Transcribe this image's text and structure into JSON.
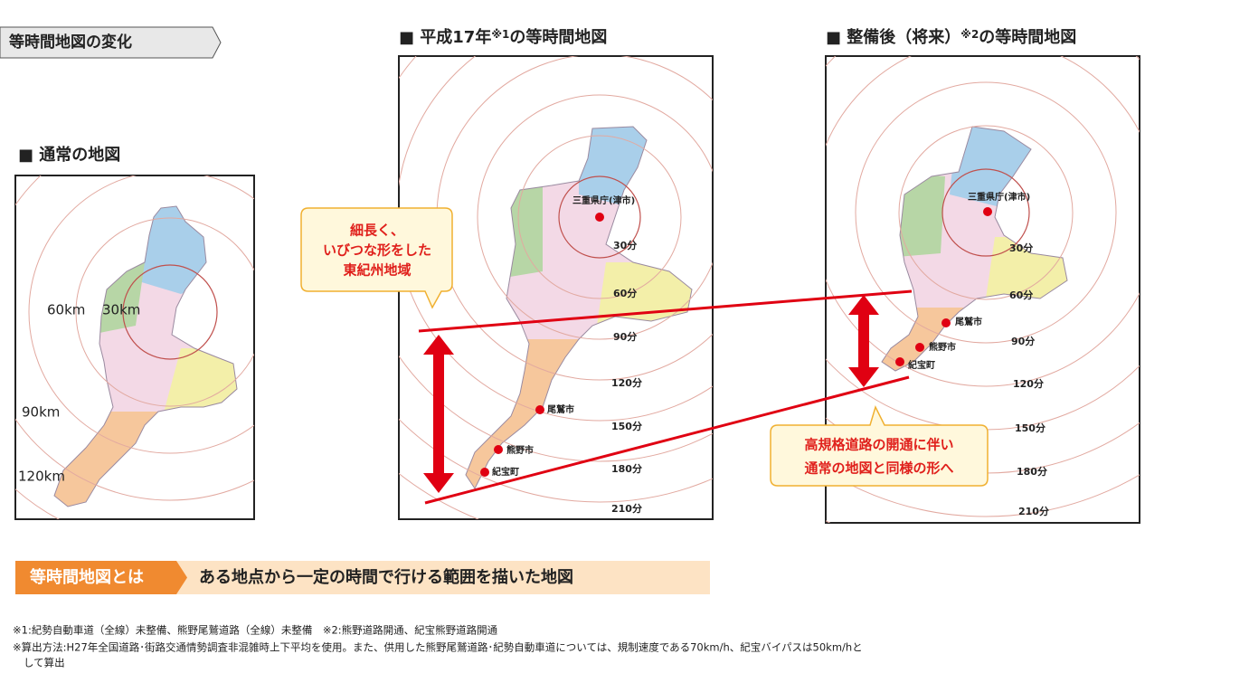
{
  "header": {
    "tab": "等時間地図の変化"
  },
  "maps": [
    {
      "title": "■ 通常の地図",
      "labels": [
        "60km",
        "30km",
        "90km",
        "120km"
      ]
    },
    {
      "title": "■ 平成17年",
      "title_note": "※1",
      "title_suffix": "の等時間地図",
      "office": "三重県庁(津市)",
      "contours": [
        "30分",
        "60分",
        "90分",
        "120分",
        "150分",
        "180分",
        "210分"
      ],
      "cities": [
        "尾鷲市",
        "熊野市",
        "紀宝町"
      ]
    },
    {
      "title": "■ 整備後（将来）",
      "title_note": "※2",
      "title_suffix": "の等時間地図",
      "office": "三重県庁(津市)",
      "contours": [
        "30分",
        "60分",
        "90分",
        "120分",
        "150分",
        "180分",
        "210分"
      ],
      "cities": [
        "尾鷲市",
        "熊野市",
        "紀宝町"
      ]
    }
  ],
  "callouts": [
    {
      "lines": [
        "細長く、",
        "いびつな形をした",
        "東紀州地域"
      ]
    },
    {
      "lines": [
        "高規格道路の開通に伴い",
        "通常の地図と同様の形へ"
      ]
    }
  ],
  "definition": {
    "term": "等時間地図とは",
    "text": "ある地点から一定の時間で行ける範囲を描いた地図"
  },
  "notes": [
    "※1:紀勢自動車道（全線）未整備、熊野尾鷲道路（全線）未整備　※2:熊野道路開通、紀宝熊野道路開通",
    "※算出方法:H27年全国道路･街路交通情勢調査非混雑時上下平均を使用。また、供用した熊野尾鷲道路･紀勢自動車道については、規制速度である70km/h、紀宝バイパスは50km/hと",
    "して算出"
  ]
}
